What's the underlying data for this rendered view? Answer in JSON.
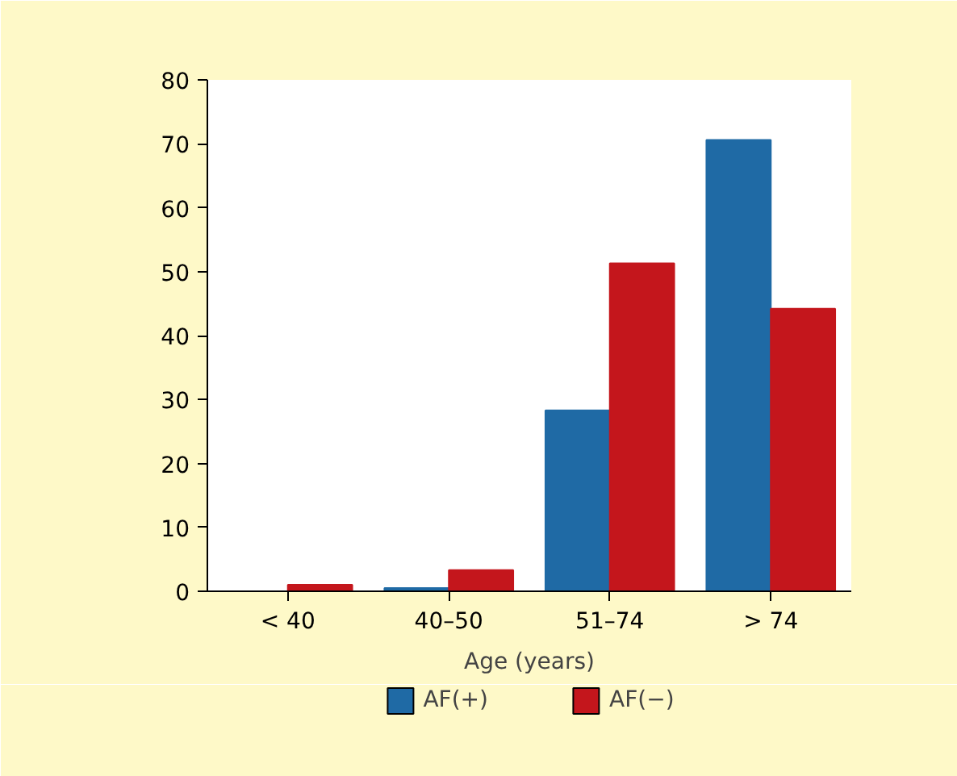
{
  "chart_data": {
    "type": "bar",
    "xlabel": "Age (years)",
    "categories": [
      "< 40",
      "40–50",
      "51–74",
      "> 74"
    ],
    "series": [
      {
        "name": "AF(+)",
        "color": "#1f6aa5",
        "values": [
          0,
          0.5,
          28.3,
          70.6
        ]
      },
      {
        "name": "AF(−)",
        "color": "#c4161c",
        "values": [
          1,
          3.3,
          51.3,
          44.2
        ]
      }
    ],
    "ylim": [
      0,
      80
    ],
    "yticks": [
      0,
      10,
      20,
      30,
      40,
      50,
      60,
      70,
      80
    ],
    "grid": false,
    "legend": "bottom"
  }
}
